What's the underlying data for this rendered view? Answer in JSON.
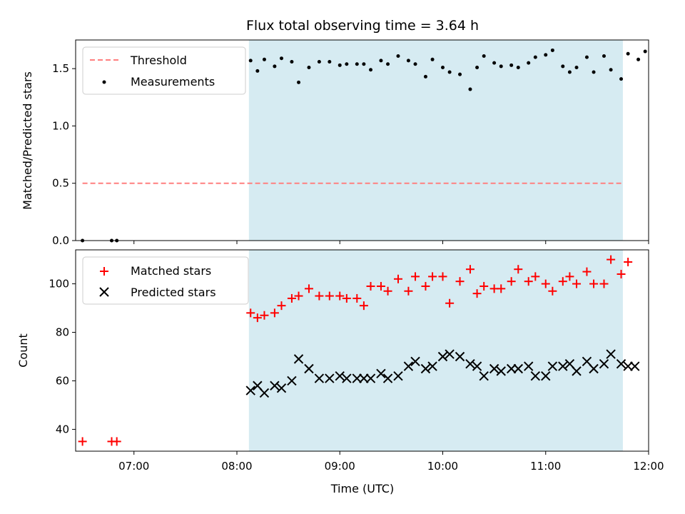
{
  "chart_data": [
    {
      "type": "scatter",
      "panel": "top",
      "title": "Flux total observing time = 3.64 h",
      "xlabel": "",
      "ylabel": "Matched/Predicted stars",
      "x_range": [
        "06:26",
        "12:00"
      ],
      "ylim": [
        0,
        1.75
      ],
      "y_ticks": [
        "0.0",
        "0.5",
        "1.0",
        "1.5"
      ],
      "grid": false,
      "legend_position": "upper-left",
      "shaded_span": {
        "start": "08:07",
        "end": "11:45",
        "color": "#add8e6"
      },
      "threshold": {
        "name": "Threshold",
        "value": 0.5,
        "start": "06:30",
        "end": "11:45",
        "color": "#ff7f7f"
      },
      "series": [
        {
          "name": "Measurements",
          "color": "#000000",
          "points": [
            [
              "06:30",
              0.0
            ],
            [
              "06:47",
              0.0
            ],
            [
              "06:50",
              0.0
            ],
            [
              "08:08",
              1.57
            ],
            [
              "08:12",
              1.48
            ],
            [
              "08:16",
              1.58
            ],
            [
              "08:22",
              1.52
            ],
            [
              "08:26",
              1.59
            ],
            [
              "08:32",
              1.56
            ],
            [
              "08:36",
              1.38
            ],
            [
              "08:42",
              1.51
            ],
            [
              "08:48",
              1.56
            ],
            [
              "08:54",
              1.56
            ],
            [
              "09:00",
              1.53
            ],
            [
              "09:04",
              1.54
            ],
            [
              "09:10",
              1.54
            ],
            [
              "09:14",
              1.54
            ],
            [
              "09:18",
              1.49
            ],
            [
              "09:24",
              1.57
            ],
            [
              "09:28",
              1.54
            ],
            [
              "09:34",
              1.61
            ],
            [
              "09:40",
              1.57
            ],
            [
              "09:44",
              1.54
            ],
            [
              "09:50",
              1.43
            ],
            [
              "09:54",
              1.58
            ],
            [
              "10:00",
              1.51
            ],
            [
              "10:04",
              1.47
            ],
            [
              "10:10",
              1.45
            ],
            [
              "10:16",
              1.32
            ],
            [
              "10:20",
              1.51
            ],
            [
              "10:24",
              1.61
            ],
            [
              "10:30",
              1.55
            ],
            [
              "10:34",
              1.52
            ],
            [
              "10:40",
              1.53
            ],
            [
              "10:44",
              1.51
            ],
            [
              "10:50",
              1.55
            ],
            [
              "10:54",
              1.6
            ],
            [
              "11:00",
              1.62
            ],
            [
              "11:04",
              1.66
            ],
            [
              "11:10",
              1.52
            ],
            [
              "11:14",
              1.47
            ],
            [
              "11:18",
              1.51
            ],
            [
              "11:24",
              1.6
            ],
            [
              "11:28",
              1.47
            ],
            [
              "11:34",
              1.61
            ],
            [
              "11:38",
              1.49
            ],
            [
              "11:44",
              1.41
            ],
            [
              "11:48",
              1.63
            ],
            [
              "11:54",
              1.58
            ],
            [
              "11:58",
              1.65
            ]
          ]
        }
      ]
    },
    {
      "type": "scatter",
      "panel": "bottom",
      "title": "",
      "xlabel": "Time (UTC)",
      "ylabel": "Count",
      "x_range": [
        "06:26",
        "12:00"
      ],
      "x_ticks": [
        "07:00",
        "08:00",
        "09:00",
        "10:00",
        "11:00",
        "12:00"
      ],
      "ylim": [
        31,
        114
      ],
      "y_ticks": [
        "40",
        "60",
        "80",
        "100"
      ],
      "grid": false,
      "legend_position": "upper-left",
      "shaded_span": {
        "start": "08:07",
        "end": "11:45",
        "color": "#add8e6"
      },
      "series": [
        {
          "name": "Matched stars",
          "marker": "plus",
          "color": "#ff0000",
          "points": [
            [
              "06:30",
              35
            ],
            [
              "06:47",
              35
            ],
            [
              "06:50",
              35
            ],
            [
              "08:08",
              88
            ],
            [
              "08:12",
              86
            ],
            [
              "08:16",
              87
            ],
            [
              "08:22",
              88
            ],
            [
              "08:26",
              91
            ],
            [
              "08:32",
              94
            ],
            [
              "08:36",
              95
            ],
            [
              "08:42",
              98
            ],
            [
              "08:48",
              95
            ],
            [
              "08:54",
              95
            ],
            [
              "09:00",
              95
            ],
            [
              "09:04",
              94
            ],
            [
              "09:10",
              94
            ],
            [
              "09:14",
              91
            ],
            [
              "09:18",
              99
            ],
            [
              "09:24",
              99
            ],
            [
              "09:28",
              97
            ],
            [
              "09:34",
              102
            ],
            [
              "09:40",
              97
            ],
            [
              "09:44",
              103
            ],
            [
              "09:50",
              99
            ],
            [
              "09:54",
              103
            ],
            [
              "10:00",
              103
            ],
            [
              "10:04",
              92
            ],
            [
              "10:10",
              101
            ],
            [
              "10:16",
              106
            ],
            [
              "10:20",
              96
            ],
            [
              "10:24",
              99
            ],
            [
              "10:30",
              98
            ],
            [
              "10:34",
              98
            ],
            [
              "10:40",
              101
            ],
            [
              "10:44",
              106
            ],
            [
              "10:50",
              101
            ],
            [
              "10:54",
              103
            ],
            [
              "11:00",
              100
            ],
            [
              "11:04",
              97
            ],
            [
              "11:10",
              101
            ],
            [
              "11:14",
              103
            ],
            [
              "11:18",
              100
            ],
            [
              "11:24",
              105
            ],
            [
              "11:28",
              100
            ],
            [
              "11:34",
              100
            ],
            [
              "11:38",
              110
            ],
            [
              "11:44",
              104
            ],
            [
              "11:48",
              109
            ]
          ]
        },
        {
          "name": "Predicted stars",
          "marker": "x",
          "color": "#000000",
          "points": [
            [
              "08:08",
              56
            ],
            [
              "08:12",
              58
            ],
            [
              "08:16",
              55
            ],
            [
              "08:22",
              58
            ],
            [
              "08:26",
              57
            ],
            [
              "08:32",
              60
            ],
            [
              "08:36",
              69
            ],
            [
              "08:42",
              65
            ],
            [
              "08:48",
              61
            ],
            [
              "08:54",
              61
            ],
            [
              "09:00",
              62
            ],
            [
              "09:04",
              61
            ],
            [
              "09:10",
              61
            ],
            [
              "09:14",
              61
            ],
            [
              "09:18",
              61
            ],
            [
              "09:24",
              63
            ],
            [
              "09:28",
              61
            ],
            [
              "09:34",
              62
            ],
            [
              "09:40",
              66
            ],
            [
              "09:44",
              68
            ],
            [
              "09:50",
              65
            ],
            [
              "09:54",
              66
            ],
            [
              "10:00",
              70
            ],
            [
              "10:04",
              71
            ],
            [
              "10:10",
              70
            ],
            [
              "10:16",
              67
            ],
            [
              "10:20",
              66
            ],
            [
              "10:24",
              62
            ],
            [
              "10:30",
              65
            ],
            [
              "10:34",
              64
            ],
            [
              "10:40",
              65
            ],
            [
              "10:44",
              65
            ],
            [
              "10:50",
              66
            ],
            [
              "10:54",
              62
            ],
            [
              "11:00",
              62
            ],
            [
              "11:04",
              66
            ],
            [
              "11:10",
              66
            ],
            [
              "11:14",
              67
            ],
            [
              "11:18",
              64
            ],
            [
              "11:24",
              68
            ],
            [
              "11:28",
              65
            ],
            [
              "11:34",
              67
            ],
            [
              "11:38",
              71
            ],
            [
              "11:44",
              67
            ],
            [
              "11:48",
              66
            ],
            [
              "11:52",
              66
            ]
          ]
        }
      ]
    }
  ]
}
